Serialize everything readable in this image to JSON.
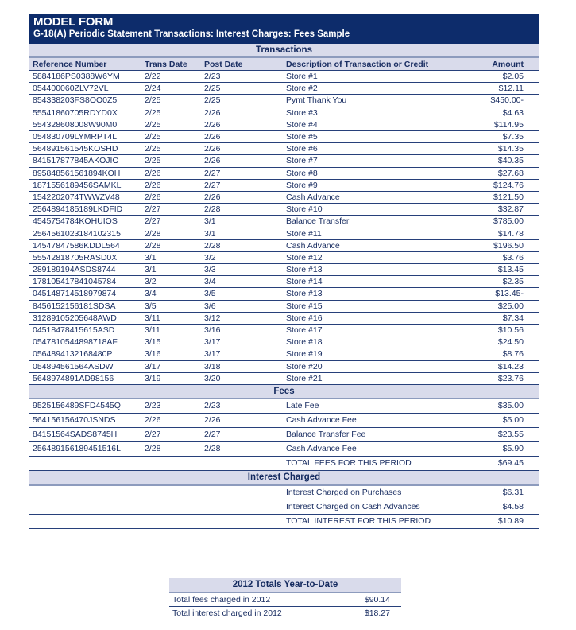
{
  "header": {
    "title": "MODEL FORM",
    "subtitle": "G-18(A) Periodic Statement Transactions: Interest Charges: Fees Sample"
  },
  "transactions": {
    "band": "Transactions",
    "columns": [
      "Reference Number",
      "Trans Date",
      "Post Date",
      "Description of Transaction or Credit",
      "Amount"
    ],
    "rows": [
      [
        "5884186PS0388W6YM",
        "2/22",
        "2/23",
        "Store #1",
        "$2.05"
      ],
      [
        "054400060ZLV72VL",
        "2/24",
        "2/25",
        "Store #2",
        "$12.11"
      ],
      [
        "854338203FS8OO0Z5",
        "2/25",
        "2/25",
        "Pymt Thank You",
        "$450.00-"
      ],
      [
        "55541860705RDYD0X",
        "2/25",
        "2/26",
        "Store #3",
        "$4.63"
      ],
      [
        "554328608008W90M0",
        "2/25",
        "2/26",
        "Store #4",
        "$114.95"
      ],
      [
        "054830709LYMRPT4L",
        "2/25",
        "2/26",
        "Store #5",
        "$7.35"
      ],
      [
        "564891561545KOSHD",
        "2/25",
        "2/26",
        "Store #6",
        "$14.35"
      ],
      [
        "841517877845AKOJIO",
        "2/25",
        "2/26",
        "Store #7",
        "$40.35"
      ],
      [
        "895848561561894KOH",
        "2/26",
        "2/27",
        "Store #8",
        "$27.68"
      ],
      [
        "1871556189456SAMKL",
        "2/26",
        "2/27",
        "Store #9",
        "$124.76"
      ],
      [
        "1542202074TWWZV48",
        "2/26",
        "2/26",
        "Cash Advance",
        "$121.50"
      ],
      [
        "2564894185189LKDFID",
        "2/27",
        "2/28",
        "Store #10",
        "$32.87"
      ],
      [
        "4545754784KOHUIOS",
        "2/27",
        "3/1",
        "Balance Transfer",
        "$785.00"
      ],
      [
        "2564561023184102315",
        "2/28",
        "3/1",
        "Store #11",
        "$14.78"
      ],
      [
        "14547847586KDDL564",
        "2/28",
        "2/28",
        "Cash Advance",
        "$196.50"
      ],
      [
        "55542818705RASD0X",
        "3/1",
        "3/2",
        "Store #12",
        "$3.76"
      ],
      [
        "289189194ASDS8744",
        "3/1",
        "3/3",
        "Store #13",
        "$13.45"
      ],
      [
        "178105417841045784",
        "3/2",
        "3/4",
        "Store #14",
        "$2.35"
      ],
      [
        "045148714518979874",
        "3/4",
        "3/5",
        "Store #13",
        "$13.45-"
      ],
      [
        "8456152156181SDSA",
        "3/5",
        "3/6",
        "Store #15",
        "$25.00"
      ],
      [
        "31289105205648AWD",
        "3/11",
        "3/12",
        "Store #16",
        "$7.34"
      ],
      [
        "04518478415615ASD",
        "3/11",
        "3/16",
        "Store #17",
        "$10.56"
      ],
      [
        "0547810544898718AF",
        "3/15",
        "3/17",
        "Store #18",
        "$24.50"
      ],
      [
        "0564894132168480P",
        "3/16",
        "3/17",
        "Store #19",
        "$8.76"
      ],
      [
        "054894561564ASDW",
        "3/17",
        "3/18",
        "Store #20",
        "$14.23"
      ],
      [
        "5648974891AD98156",
        "3/19",
        "3/20",
        "Store #21",
        "$23.76"
      ]
    ]
  },
  "fees": {
    "band": "Fees",
    "rows": [
      [
        "9525156489SFD4545Q",
        "2/23",
        "2/23",
        "Late Fee",
        "$35.00"
      ],
      [
        "564156156470JSNDS",
        "2/26",
        "2/26",
        "Cash Advance Fee",
        "$5.00"
      ],
      [
        "84151564SADS8745H",
        "2/27",
        "2/27",
        "Balance Transfer Fee",
        "$23.55"
      ],
      [
        "256489156189451516L",
        "2/28",
        "2/28",
        "Cash Advance Fee",
        "$5.90"
      ],
      [
        "",
        "",
        "",
        "TOTAL FEES FOR THIS PERIOD",
        "$69.45"
      ]
    ]
  },
  "interest": {
    "band": "Interest Charged",
    "rows": [
      [
        "",
        "",
        "",
        "Interest Charged on Purchases",
        "$6.31"
      ],
      [
        "",
        "",
        "",
        "Interest Charged on Cash Advances",
        "$4.58"
      ],
      [
        "",
        "",
        "",
        "TOTAL INTEREST FOR THIS PERIOD",
        "$10.89"
      ]
    ]
  },
  "ytd": {
    "title": "2012 Totals Year-to-Date",
    "rows": [
      [
        "Total fees charged in 2012",
        "$90.14"
      ],
      [
        "Total interest charged in 2012",
        "$18.27"
      ]
    ]
  },
  "colors": {
    "header": "#0d2c6b",
    "band": "#d9dbeb",
    "text": "#13295e"
  }
}
